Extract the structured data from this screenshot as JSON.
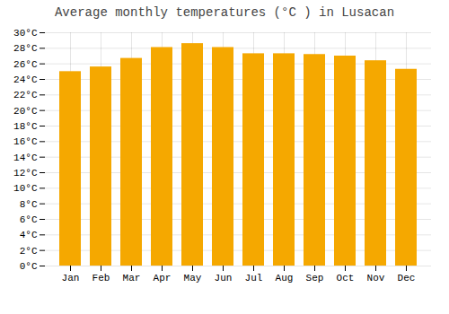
{
  "chart_data": {
    "type": "bar",
    "title": "Average monthly temperatures (°C ) in Lusacan",
    "categories": [
      "Jan",
      "Feb",
      "Mar",
      "Apr",
      "May",
      "Jun",
      "Jul",
      "Aug",
      "Sep",
      "Oct",
      "Nov",
      "Dec"
    ],
    "values": [
      25.0,
      25.6,
      26.7,
      28.1,
      28.6,
      28.1,
      27.3,
      27.3,
      27.2,
      27.0,
      26.4,
      25.3
    ],
    "color": "#F5A800",
    "ylim": [
      0,
      30
    ],
    "yticks": [
      {
        "value": 0,
        "label": "0°C"
      },
      {
        "value": 2,
        "label": "2°C"
      },
      {
        "value": 4,
        "label": "4°C"
      },
      {
        "value": 6,
        "label": "6°C"
      },
      {
        "value": 8,
        "label": "8°C"
      },
      {
        "value": 10,
        "label": "10°C"
      },
      {
        "value": 12,
        "label": "12°C"
      },
      {
        "value": 14,
        "label": "14°C"
      },
      {
        "value": 16,
        "label": "16°C"
      },
      {
        "value": 18,
        "label": "18°C"
      },
      {
        "value": 20,
        "label": "20°C"
      },
      {
        "value": 22,
        "label": "22°C"
      },
      {
        "value": 24,
        "label": "24°C"
      },
      {
        "value": 26,
        "label": "26°C"
      },
      {
        "value": 28,
        "label": "28°C"
      },
      {
        "value": 30,
        "label": "30°C"
      }
    ],
    "grid": true
  }
}
